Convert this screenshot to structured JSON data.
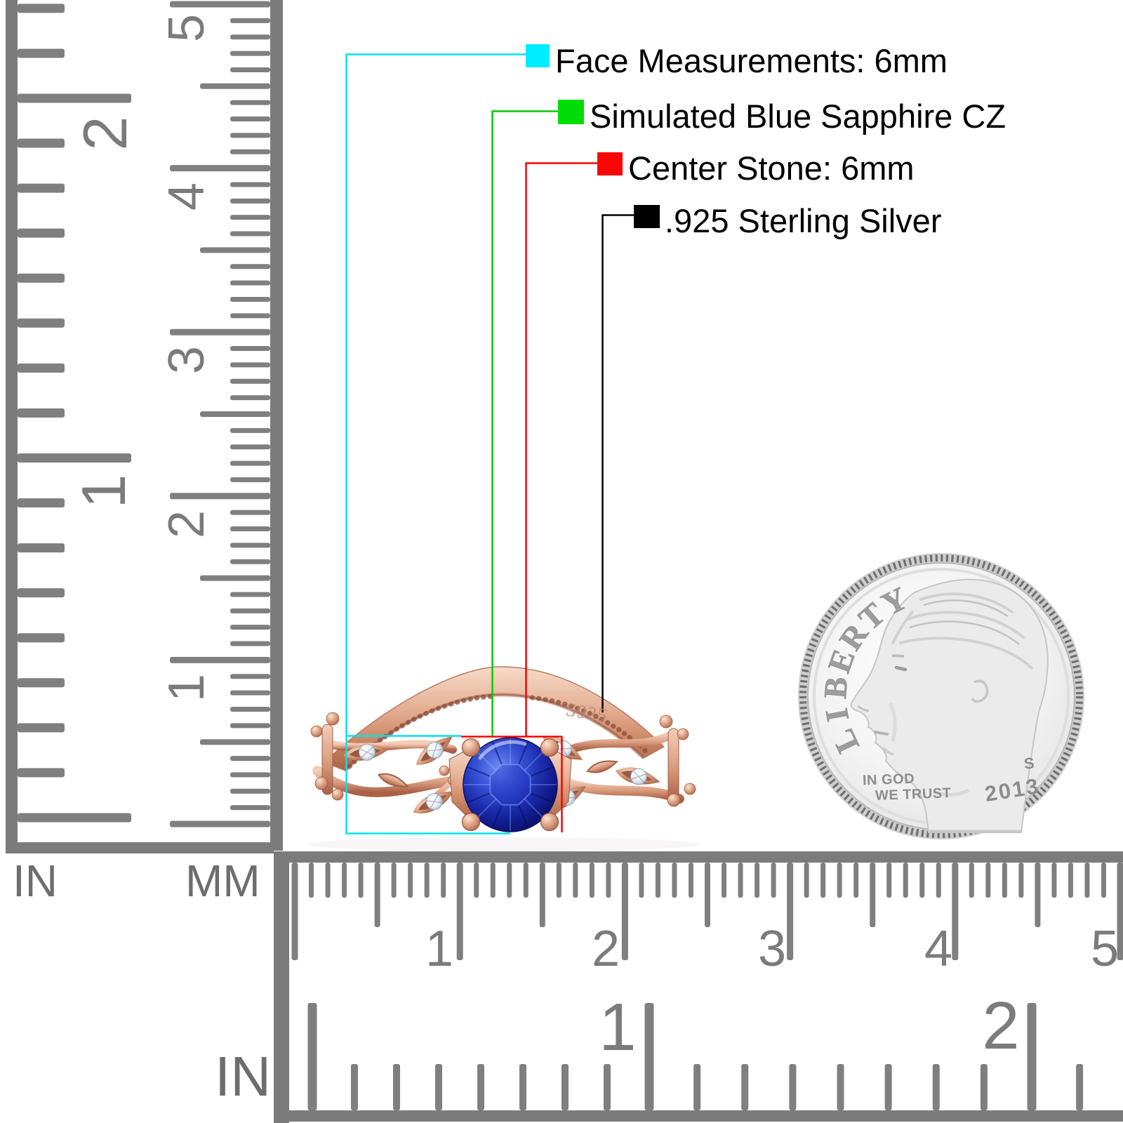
{
  "legend": {
    "items": [
      {
        "label": "Face Measurements: 6mm",
        "color": "#00ecff"
      },
      {
        "label": "Simulated Blue Sapphire CZ",
        "color": "#00dd06"
      },
      {
        "label": "Center Stone: 6mm",
        "color": "#fb0505"
      },
      {
        "label": ".925 Sterling Silver",
        "color": "#000000"
      }
    ]
  },
  "rulers": {
    "left_inch": {
      "unit_label": "IN",
      "numbers": [
        "2",
        "1"
      ]
    },
    "left_mm": {
      "unit_label": "MM",
      "numbers": [
        "5",
        "4",
        "3",
        "2",
        "1"
      ]
    },
    "bottom": {
      "unit_label": "IN",
      "mm_numbers": [
        "1",
        "2",
        "3",
        "4",
        "5"
      ],
      "inch_numbers": [
        "1",
        "2"
      ]
    }
  },
  "ring": {
    "stamp": "S925"
  },
  "coin": {
    "rim_text": "LIBERTY",
    "motto_line1": "IN GOD",
    "motto_line2": "WE TRUST",
    "mint_mark": "S",
    "year": "2013"
  }
}
